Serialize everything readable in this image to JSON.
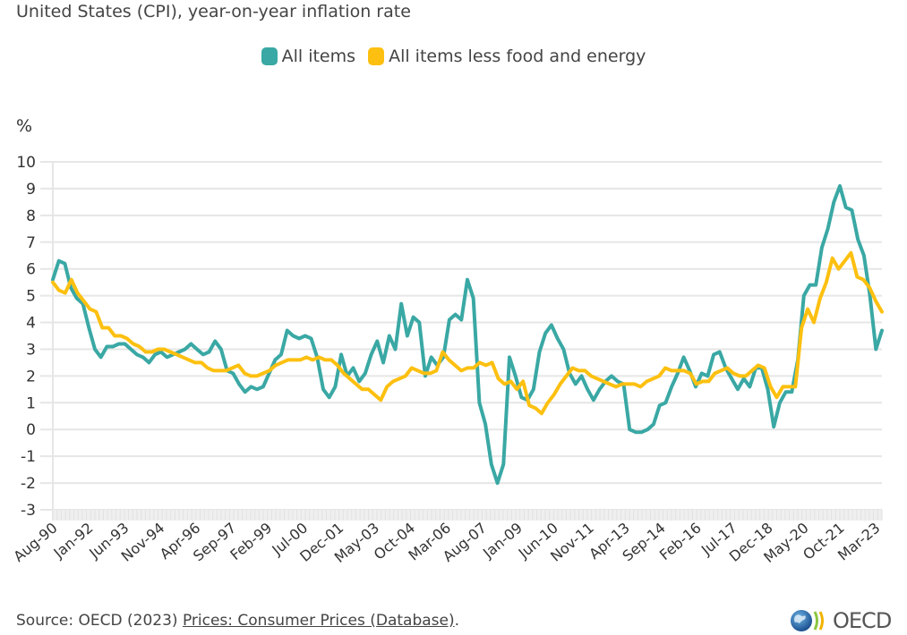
{
  "title": "United States (CPI), year-on-year inflation rate",
  "legend": [
    {
      "label": "All items",
      "color": "#3aa8a4"
    },
    {
      "label": "All items less food and energy",
      "color": "#fdc010"
    }
  ],
  "source": {
    "prefix": "Source: OECD (2023) ",
    "link_text": "Prices: Consumer Prices (Database)",
    "suffix": "."
  },
  "logo_text": "OECD",
  "chart_data": {
    "type": "line",
    "title": "United States (CPI), year-on-year inflation rate",
    "xlabel": "",
    "ylabel": "%",
    "ylim": [
      -3,
      10
    ],
    "yticks": [
      10,
      9,
      8,
      7,
      6,
      5,
      4,
      3,
      2,
      1,
      0,
      -1,
      -2,
      -3
    ],
    "grid": true,
    "legend_position": "top-center",
    "x_start": "1990-08",
    "x_step_months": 3,
    "x_tick_labels": [
      "Aug-90",
      "Jan-92",
      "Jun-93",
      "Nov-94",
      "Apr-96",
      "Sep-97",
      "Feb-99",
      "Jul-00",
      "Dec-01",
      "May-03",
      "Oct-04",
      "Mar-06",
      "Aug-07",
      "Jan-09",
      "Jun-10",
      "Nov-11",
      "Apr-13",
      "Sep-14",
      "Feb-16",
      "Jul-17",
      "Dec-18",
      "May-20",
      "Oct-21",
      "Mar-23"
    ],
    "x_tick_step_months": 17,
    "series": [
      {
        "name": "All items",
        "color": "#3aa8a4",
        "values": [
          5.6,
          6.3,
          6.2,
          5.3,
          4.9,
          4.7,
          3.8,
          3.0,
          2.7,
          3.1,
          3.1,
          3.2,
          3.2,
          3.0,
          2.8,
          2.7,
          2.5,
          2.8,
          2.9,
          2.7,
          2.8,
          2.9,
          3.0,
          3.2,
          3.0,
          2.8,
          2.9,
          3.3,
          3.0,
          2.2,
          2.1,
          1.7,
          1.4,
          1.6,
          1.5,
          1.6,
          2.1,
          2.6,
          2.8,
          3.7,
          3.5,
          3.4,
          3.5,
          3.4,
          2.7,
          1.5,
          1.2,
          1.6,
          2.8,
          2.0,
          2.3,
          1.8,
          2.1,
          2.8,
          3.3,
          2.5,
          3.5,
          3.0,
          4.7,
          3.5,
          4.2,
          4.0,
          2.0,
          2.7,
          2.4,
          2.7,
          4.1,
          4.3,
          4.1,
          5.6,
          4.9,
          1.0,
          0.2,
          -1.3,
          -2.0,
          -1.3,
          2.7,
          2.0,
          1.2,
          1.1,
          1.5,
          2.9,
          3.6,
          3.9,
          3.4,
          3.0,
          2.1,
          1.7,
          2.0,
          1.5,
          1.1,
          1.5,
          1.8,
          2.0,
          1.8,
          1.7,
          0.0,
          -0.1,
          -0.1,
          0.0,
          0.2,
          0.9,
          1.0,
          1.6,
          2.1,
          2.7,
          2.2,
          1.6,
          2.1,
          2.0,
          2.8,
          2.9,
          2.3,
          1.9,
          1.5,
          1.9,
          1.6,
          2.3,
          2.3,
          1.5,
          0.1,
          1.0,
          1.4,
          1.4,
          2.6,
          5.0,
          5.4,
          5.4,
          6.8,
          7.5,
          8.5,
          9.1,
          8.3,
          8.2,
          7.1,
          6.5,
          5.0,
          3.0,
          3.7
        ]
      },
      {
        "name": "All items less food and energy",
        "color": "#fdc010",
        "values": [
          5.5,
          5.2,
          5.1,
          5.6,
          5.1,
          4.8,
          4.5,
          4.4,
          3.8,
          3.8,
          3.5,
          3.5,
          3.4,
          3.2,
          3.1,
          2.9,
          2.9,
          3.0,
          3.0,
          2.9,
          2.8,
          2.7,
          2.6,
          2.5,
          2.5,
          2.3,
          2.2,
          2.2,
          2.2,
          2.3,
          2.4,
          2.1,
          2.0,
          2.0,
          2.1,
          2.2,
          2.4,
          2.5,
          2.6,
          2.6,
          2.6,
          2.7,
          2.6,
          2.7,
          2.6,
          2.6,
          2.4,
          2.1,
          1.9,
          1.7,
          1.5,
          1.5,
          1.3,
          1.1,
          1.6,
          1.8,
          1.9,
          2.0,
          2.3,
          2.2,
          2.1,
          2.1,
          2.2,
          2.9,
          2.6,
          2.4,
          2.2,
          2.3,
          2.3,
          2.5,
          2.4,
          2.5,
          1.9,
          1.7,
          1.8,
          1.5,
          1.8,
          0.9,
          0.8,
          0.6,
          1.0,
          1.3,
          1.7,
          2.0,
          2.3,
          2.2,
          2.2,
          2.0,
          1.9,
          1.8,
          1.7,
          1.6,
          1.7,
          1.7,
          1.7,
          1.6,
          1.8,
          1.9,
          2.0,
          2.3,
          2.2,
          2.2,
          2.2,
          2.1,
          1.7,
          1.8,
          1.8,
          2.1,
          2.2,
          2.3,
          2.1,
          2.0,
          2.0,
          2.2,
          2.4,
          2.3,
          1.6,
          1.2,
          1.6,
          1.6,
          1.6,
          3.8,
          4.5,
          4.0,
          4.9,
          5.5,
          6.4,
          6.0,
          6.3,
          6.6,
          5.7,
          5.6,
          5.3,
          4.8,
          4.4
        ]
      }
    ]
  }
}
